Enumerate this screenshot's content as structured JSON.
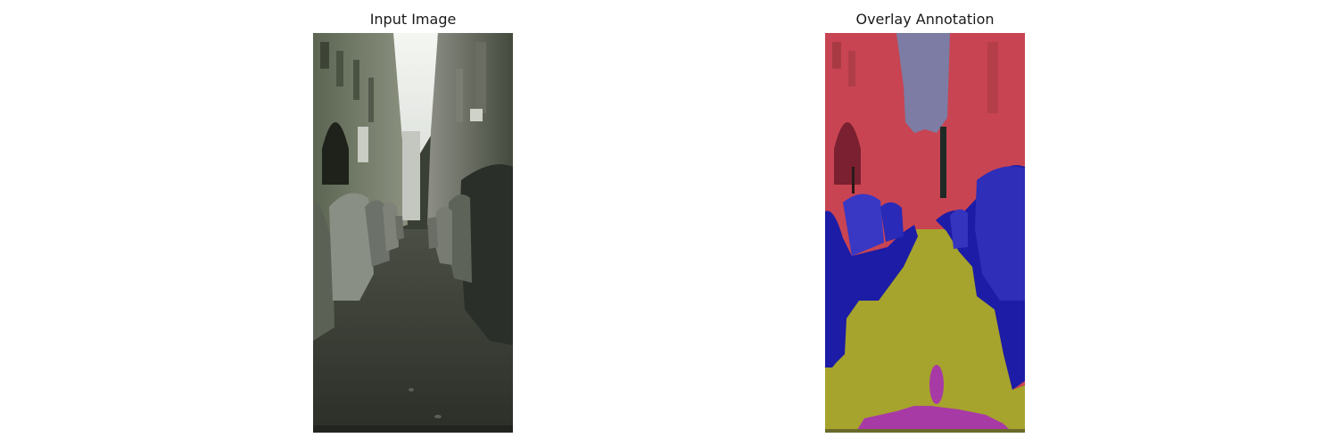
{
  "panels": [
    {
      "title": "Input Image"
    },
    {
      "title": "Overlay Annotation"
    }
  ],
  "overlay_legend_colors": {
    "building": "#c83c4a",
    "sky": "#7a7aa8",
    "car": "#1a1aa8",
    "road": "#a8a82a",
    "ego_vehicle": "#a83aa8",
    "pole": "#101010"
  }
}
